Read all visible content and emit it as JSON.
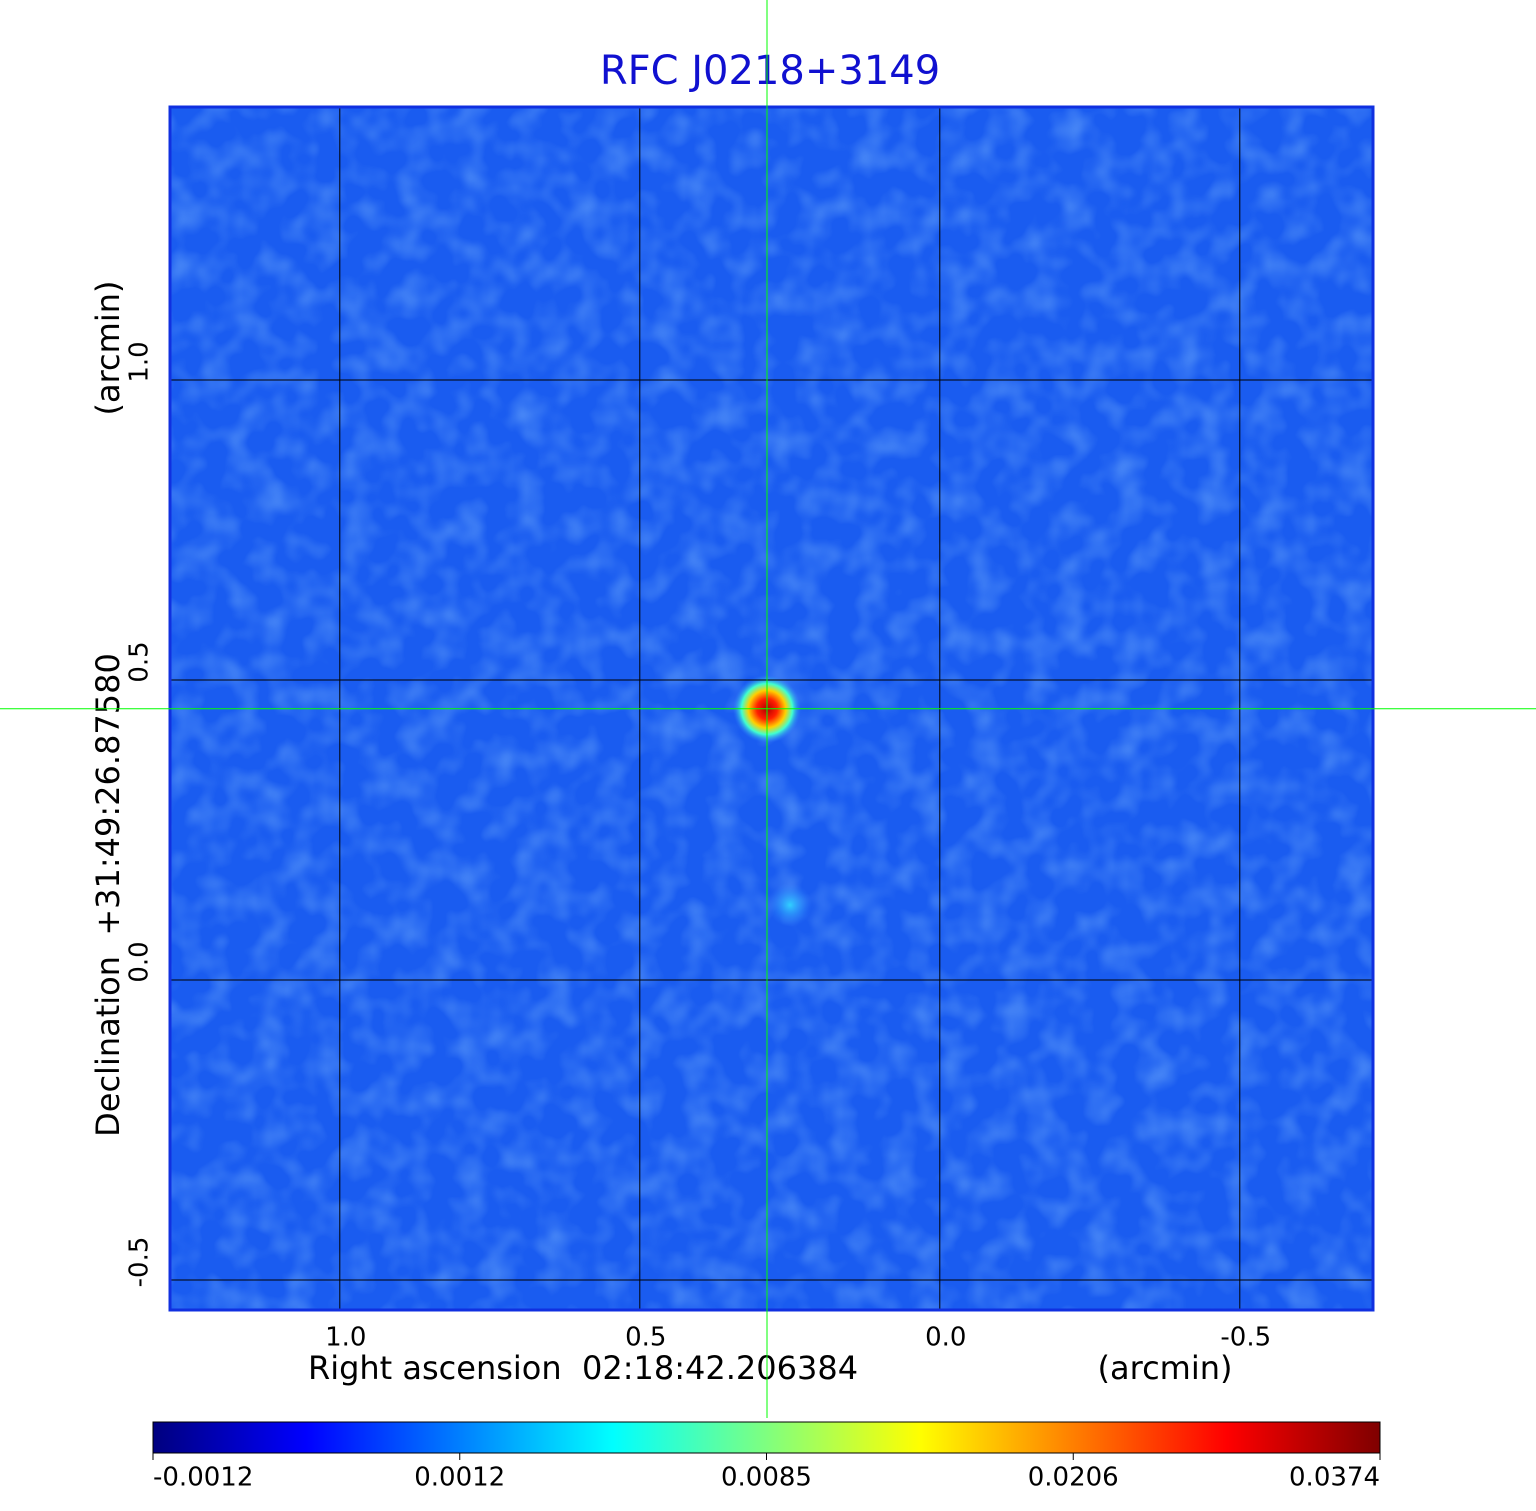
{
  "chart_data": {
    "type": "image",
    "title": "RFC J0218+3149",
    "xlabel": "Right ascension  02:18:42.206384",
    "xunit": "(arcmin)",
    "ylabel": "Declination  +31:49:26.87580",
    "yunit": "(arcmin)",
    "xlim": [
      1.283,
      -0.722
    ],
    "ylim": [
      -0.55,
      1.455
    ],
    "xticks": [
      {
        "value": 1,
        "label": "1.0"
      },
      {
        "value": 0.5,
        "label": "0.5"
      },
      {
        "value": 0,
        "label": "0.0"
      },
      {
        "value": -0.5,
        "label": "-0.5"
      }
    ],
    "yticks": [
      {
        "value": -0.5,
        "label": "-0.5"
      },
      {
        "value": 0,
        "label": "0.0"
      },
      {
        "value": 0.5,
        "label": "0.5"
      },
      {
        "value": 1,
        "label": "1.0"
      }
    ],
    "grid": true,
    "crosshair": {
      "x": 0.288,
      "y": 0.452,
      "color": "#00ff00"
    },
    "colorbar_ticks": [
      -0.0012,
      0.0012,
      0.0085,
      0.0206,
      0.0374
    ],
    "colormap": [
      "#00007f",
      "#0000ff",
      "#007fff",
      "#00ffff",
      "#7fff7f",
      "#ffff00",
      "#ff7f00",
      "#ff0000",
      "#7f0000"
    ]
  }
}
